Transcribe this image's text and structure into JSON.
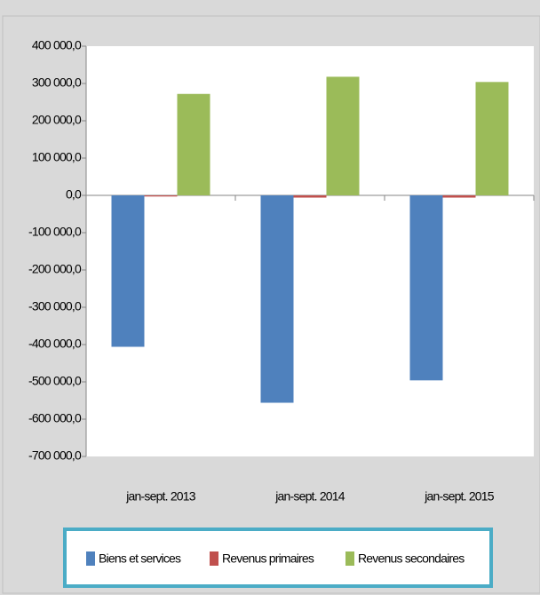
{
  "chart_data": {
    "type": "bar",
    "categories": [
      "jan-sept. 2013",
      "jan-sept. 2014",
      "jan-sept. 2015"
    ],
    "series": [
      {
        "name": "Biens et services",
        "color": "#4f81bd",
        "values": [
          -406000,
          -556000,
          -496000
        ]
      },
      {
        "name": "Revenus primaires",
        "color": "#c0504d",
        "values": [
          -3000,
          -6000,
          -6000
        ]
      },
      {
        "name": "Revenus secondaires",
        "color": "#9bbb59",
        "values": [
          272000,
          318000,
          304000
        ]
      }
    ],
    "ylim": [
      -700000,
      400000
    ],
    "yticks": [
      {
        "value": 400000,
        "label": "400 000,0"
      },
      {
        "value": 300000,
        "label": "300 000,0"
      },
      {
        "value": 200000,
        "label": "200 000,0"
      },
      {
        "value": 100000,
        "label": "100 000,0"
      },
      {
        "value": 0,
        "label": "0,0"
      },
      {
        "value": -100000,
        "label": "-100 000,0"
      },
      {
        "value": -200000,
        "label": "-200 000,0"
      },
      {
        "value": -300000,
        "label": "-300 000,0"
      },
      {
        "value": -400000,
        "label": "-400 000,0"
      },
      {
        "value": -500000,
        "label": "-500 000,0"
      },
      {
        "value": -600000,
        "label": "-600 000,0"
      },
      {
        "value": -700000,
        "label": "-700 000,0"
      }
    ],
    "legend": "bottom"
  }
}
